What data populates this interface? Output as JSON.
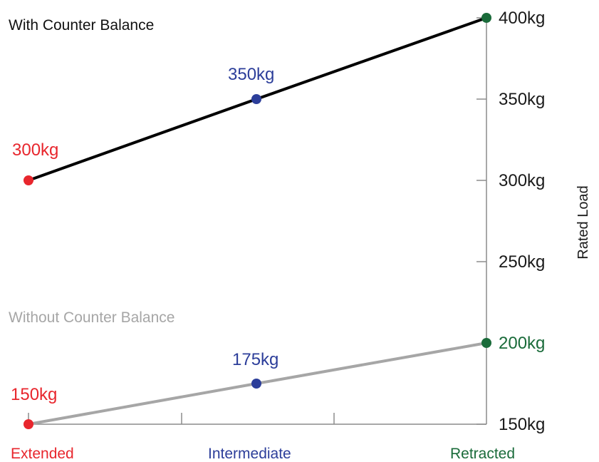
{
  "chart_data": {
    "type": "line",
    "categories": [
      "Extended",
      "Intermediate",
      "Retracted"
    ],
    "category_colors": [
      "#e8262d",
      "#2c3e9a",
      "#1a6b3a"
    ],
    "ylabel": "Rated Load",
    "ylim": [
      150,
      400
    ],
    "yticks": [
      150,
      250,
      300,
      350,
      400
    ],
    "ytick_labels": [
      "150kg",
      "250kg",
      "300kg",
      "350kg",
      "400kg"
    ],
    "series": [
      {
        "name": "With Counter Balance",
        "values": [
          300,
          350,
          400
        ],
        "value_labels": [
          "300kg",
          "350kg",
          "400kg"
        ],
        "color": "#000000"
      },
      {
        "name": "Without Counter Balance",
        "values": [
          150,
          175,
          200
        ],
        "value_labels": [
          "150kg",
          "175kg",
          "200kg"
        ],
        "color": "#a6a6a6"
      }
    ]
  }
}
